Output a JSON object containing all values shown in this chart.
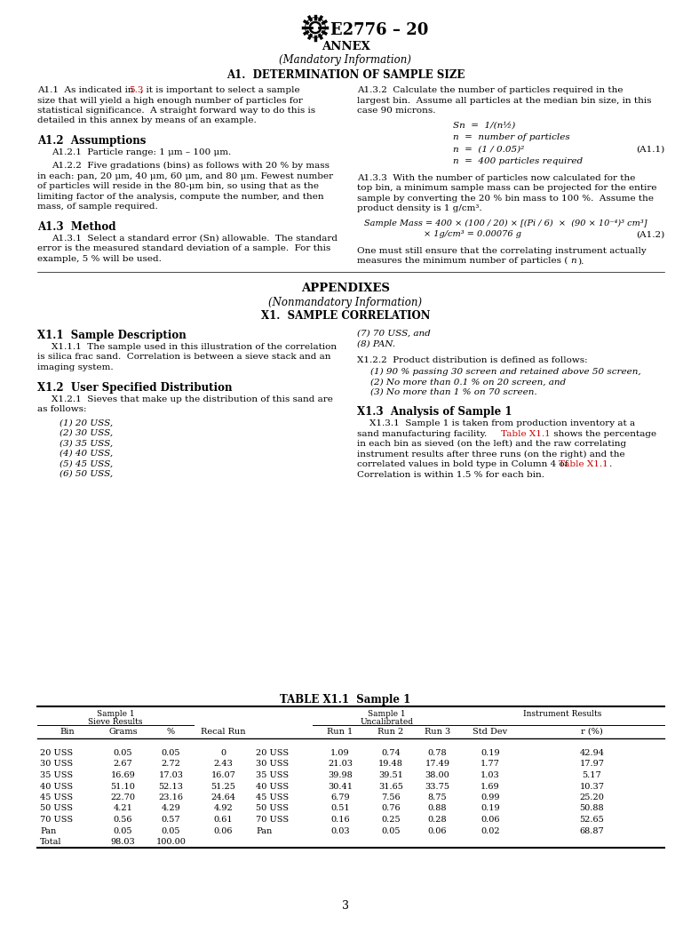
{
  "title_text": "E2776 – 20",
  "annex_text": "ANNEX",
  "mandatory_text": "(Mandatory Information)",
  "section_a1_title": "A1.  DETERMINATION OF SAMPLE SIZE",
  "a12_heading": "A1.2  Assumptions",
  "a121_text": "A1.2.1  Particle range: 1 μm – 100 μm.",
  "a13_heading": "A1.3  Method",
  "appendix_title": "APPENDIXES",
  "nonmandatory_text": "(Nonmandatory Information)",
  "x1_title": "X1.  SAMPLE CORRELATION",
  "x11_heading": "X1.1  Sample Description",
  "x12_heading": "X1.2  User Specified Distribution",
  "x13_heading": "X1.3  Analysis of Sample 1",
  "table_title": "TABLE X1.1  Sample 1",
  "table_data": [
    [
      "20 USS",
      "0.05",
      "0.05",
      "0",
      "20 USS",
      "1.09",
      "0.74",
      "0.78",
      "0.19",
      "42.94"
    ],
    [
      "30 USS",
      "2.67",
      "2.72",
      "2.43",
      "30 USS",
      "21.03",
      "19.48",
      "17.49",
      "1.77",
      "17.97"
    ],
    [
      "35 USS",
      "16.69",
      "17.03",
      "16.07",
      "35 USS",
      "39.98",
      "39.51",
      "38.00",
      "1.03",
      "5.17"
    ],
    [
      "40 USS",
      "51.10",
      "52.13",
      "51.25",
      "40 USS",
      "30.41",
      "31.65",
      "33.75",
      "1.69",
      "10.37"
    ],
    [
      "45 USS",
      "22.70",
      "23.16",
      "24.64",
      "45 USS",
      "6.79",
      "7.56",
      "8.75",
      "0.99",
      "25.20"
    ],
    [
      "50 USS",
      "4.21",
      "4.29",
      "4.92",
      "50 USS",
      "0.51",
      "0.76",
      "0.88",
      "0.19",
      "50.88"
    ],
    [
      "70 USS",
      "0.56",
      "0.57",
      "0.61",
      "70 USS",
      "0.16",
      "0.25",
      "0.28",
      "0.06",
      "52.65"
    ],
    [
      "Pan",
      "0.05",
      "0.05",
      "0.06",
      "Pan",
      "0.03",
      "0.05",
      "0.06",
      "0.02",
      "68.87"
    ],
    [
      "Total",
      "98.03",
      "100.00",
      "",
      "",
      "",
      "",
      "",
      "",
      ""
    ]
  ],
  "page_number": "3",
  "bg_color": "#ffffff",
  "text_color": "#000000",
  "link_color": "#cc0000"
}
